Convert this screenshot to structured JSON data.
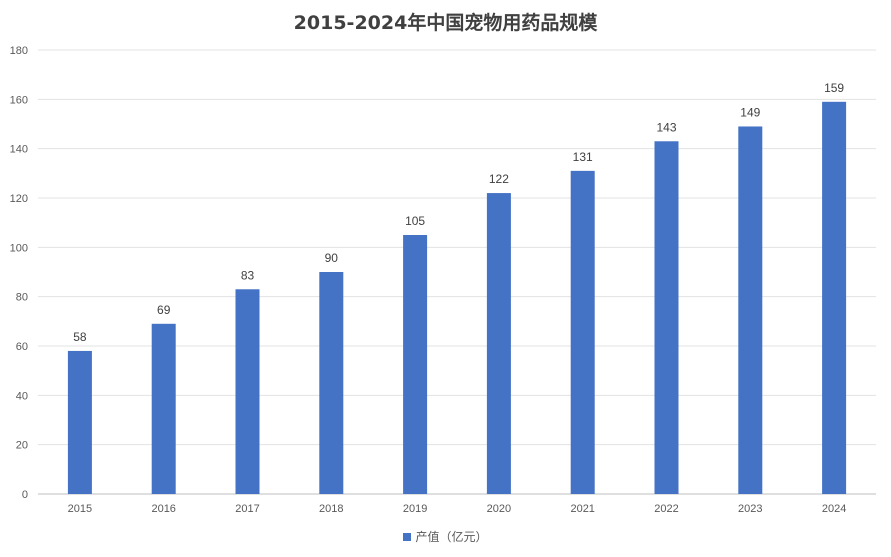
{
  "chart_data": {
    "type": "bar",
    "title": "2015-2024年中国宠物用药品规模",
    "categories": [
      "2015",
      "2016",
      "2017",
      "2018",
      "2019",
      "2020",
      "2021",
      "2022",
      "2023",
      "2024"
    ],
    "series": [
      {
        "name": "产值（亿元）",
        "values": [
          58,
          69,
          83,
          90,
          105,
          122,
          131,
          143,
          149,
          159
        ],
        "color": "#4472C4"
      }
    ],
    "ylim": [
      0,
      180
    ],
    "yticks": [
      0,
      20,
      40,
      60,
      80,
      100,
      120,
      140,
      160,
      180
    ],
    "grid": true,
    "data_labels": true,
    "legend_position": "bottom"
  }
}
